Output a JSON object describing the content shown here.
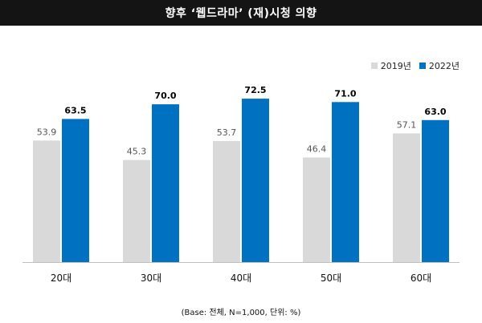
{
  "title": "향후 ‘웹드라마’ (재)시청 의향",
  "footnote": "(Base: 전체, N=1,000, 단위: %)",
  "colors": {
    "series_2019": "#d9d9d9",
    "series_2022": "#0070c0",
    "title_bg": "#141414"
  },
  "chart_data": {
    "type": "bar",
    "title": "향후 ‘웹드라마’ (재)시청 의향",
    "categories": [
      "20대",
      "30대",
      "40대",
      "50대",
      "60대"
    ],
    "series": [
      {
        "name": "2019년",
        "values": [
          53.9,
          45.3,
          53.7,
          46.4,
          57.1
        ],
        "labels": [
          "53.9",
          "45.3",
          "53.7",
          "46.4",
          "57.1"
        ]
      },
      {
        "name": "2022년",
        "values": [
          63.5,
          70.0,
          72.5,
          71.0,
          63.0
        ],
        "labels": [
          "63.5",
          "70.0",
          "72.5",
          "71.0",
          "63.0"
        ]
      }
    ],
    "ylim": [
      0,
      80
    ],
    "grid": false,
    "legend": "top-right",
    "xlabel": "",
    "ylabel": ""
  }
}
